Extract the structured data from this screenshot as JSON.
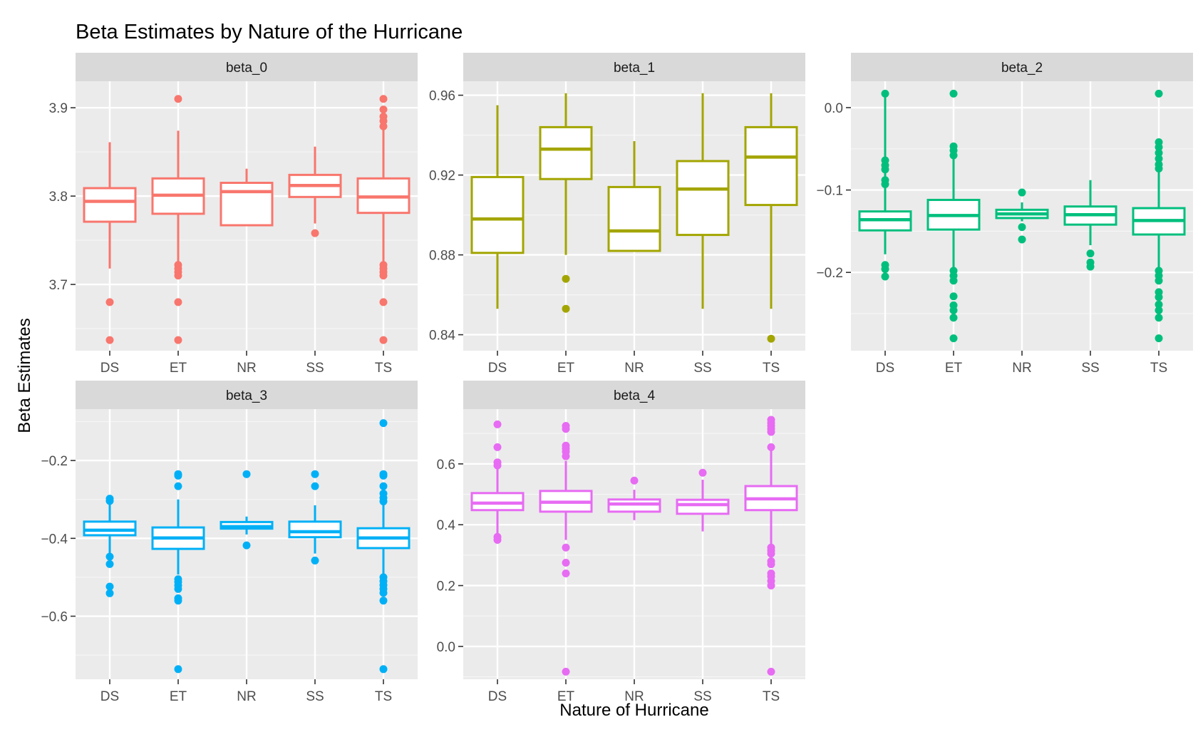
{
  "chart_data": {
    "type": "box",
    "title": "Beta Estimates by Nature of the Hurricane",
    "xlabel": "Nature of Hurricane",
    "ylabel": "Beta Estimates",
    "categories": [
      "DS",
      "ET",
      "NR",
      "SS",
      "TS"
    ],
    "grid": true,
    "legend": "none",
    "panels": [
      {
        "name": "beta_0",
        "color": "#F8766D",
        "ylim": [
          3.625,
          3.93
        ],
        "ticks": [
          3.7,
          3.8,
          3.9
        ],
        "tick_labels": [
          "3.7",
          "3.8",
          "3.9"
        ],
        "boxes": [
          {
            "category": "DS",
            "whisker_low": 3.718,
            "q1": 3.771,
            "median": 3.794,
            "q3": 3.809,
            "whisker_high": 3.861,
            "outliers": [
              3.68,
              3.637
            ]
          },
          {
            "category": "ET",
            "whisker_low": 3.725,
            "q1": 3.78,
            "median": 3.801,
            "q3": 3.82,
            "whisker_high": 3.874,
            "outliers": [
              3.91,
              3.722,
              3.718,
              3.714,
              3.71,
              3.68,
              3.637
            ]
          },
          {
            "category": "NR",
            "whisker_low": 3.767,
            "q1": 3.767,
            "median": 3.805,
            "q3": 3.815,
            "whisker_high": 3.831,
            "outliers": []
          },
          {
            "category": "SS",
            "whisker_low": 3.769,
            "q1": 3.799,
            "median": 3.812,
            "q3": 3.824,
            "whisker_high": 3.856,
            "outliers": [
              3.758
            ]
          },
          {
            "category": "TS",
            "whisker_low": 3.725,
            "q1": 3.781,
            "median": 3.799,
            "q3": 3.82,
            "whisker_high": 3.876,
            "outliers": [
              3.91,
              3.898,
              3.89,
              3.885,
              3.879,
              3.722,
              3.718,
              3.714,
              3.71,
              3.68,
              3.637
            ]
          }
        ]
      },
      {
        "name": "beta_1",
        "color": "#A3A500",
        "ylim": [
          0.832,
          0.967
        ],
        "ticks": [
          0.84,
          0.88,
          0.92,
          0.96
        ],
        "tick_labels": [
          "0.84",
          "0.88",
          "0.92",
          "0.96"
        ],
        "boxes": [
          {
            "category": "DS",
            "whisker_low": 0.853,
            "q1": 0.881,
            "median": 0.898,
            "q3": 0.919,
            "whisker_high": 0.955,
            "outliers": []
          },
          {
            "category": "ET",
            "whisker_low": 0.88,
            "q1": 0.918,
            "median": 0.933,
            "q3": 0.944,
            "whisker_high": 0.961,
            "outliers": [
              0.868,
              0.853
            ]
          },
          {
            "category": "NR",
            "whisker_low": 0.882,
            "q1": 0.882,
            "median": 0.892,
            "q3": 0.914,
            "whisker_high": 0.937,
            "outliers": []
          },
          {
            "category": "SS",
            "whisker_low": 0.853,
            "q1": 0.89,
            "median": 0.913,
            "q3": 0.927,
            "whisker_high": 0.961,
            "outliers": []
          },
          {
            "category": "TS",
            "whisker_low": 0.853,
            "q1": 0.905,
            "median": 0.929,
            "q3": 0.944,
            "whisker_high": 0.961,
            "outliers": [
              0.838
            ]
          }
        ]
      },
      {
        "name": "beta_2",
        "color": "#00BF7D",
        "ylim": [
          -0.295,
          0.032
        ],
        "ticks": [
          -0.2,
          -0.1,
          0.0
        ],
        "tick_labels": [
          "−0.2",
          "−0.1",
          "0.0"
        ],
        "boxes": [
          {
            "category": "DS",
            "whisker_low": -0.178,
            "q1": -0.149,
            "median": -0.136,
            "q3": -0.126,
            "whisker_high": 0.017,
            "outliers": [
              0.017,
              -0.064,
              -0.07,
              -0.075,
              -0.088,
              -0.093,
              -0.191,
              -0.196,
              -0.205
            ]
          },
          {
            "category": "ET",
            "whisker_low": -0.195,
            "q1": -0.148,
            "median": -0.131,
            "q3": -0.112,
            "whisker_high": -0.058,
            "outliers": [
              0.017,
              -0.047,
              -0.052,
              -0.058,
              -0.198,
              -0.204,
              -0.21,
              -0.229,
              -0.24,
              -0.246,
              -0.255,
              -0.28
            ]
          },
          {
            "category": "NR",
            "whisker_low": -0.138,
            "q1": -0.134,
            "median": -0.129,
            "q3": -0.124,
            "whisker_high": -0.115,
            "outliers": [
              -0.103,
              -0.145,
              -0.16
            ]
          },
          {
            "category": "SS",
            "whisker_low": -0.167,
            "q1": -0.142,
            "median": -0.13,
            "q3": -0.12,
            "whisker_high": -0.088,
            "outliers": [
              -0.177,
              -0.188,
              -0.193
            ]
          },
          {
            "category": "TS",
            "whisker_low": -0.197,
            "q1": -0.154,
            "median": -0.137,
            "q3": -0.122,
            "whisker_high": -0.065,
            "outliers": [
              0.017,
              -0.042,
              -0.048,
              -0.055,
              -0.062,
              -0.069,
              -0.074,
              -0.198,
              -0.204,
              -0.21,
              -0.224,
              -0.23,
              -0.239,
              -0.246,
              -0.255,
              -0.28
            ]
          }
        ]
      },
      {
        "name": "beta_3",
        "color": "#00B0F6",
        "ylim": [
          -0.762,
          -0.068
        ],
        "ticks": [
          -0.6,
          -0.4,
          -0.2
        ],
        "tick_labels": [
          "−0.6",
          "−0.4",
          "−0.2"
        ],
        "boxes": [
          {
            "category": "DS",
            "whisker_low": -0.439,
            "q1": -0.392,
            "median": -0.379,
            "q3": -0.357,
            "whisker_high": -0.31,
            "outliers": [
              -0.298,
              -0.304,
              -0.447,
              -0.466,
              -0.524,
              -0.541
            ]
          },
          {
            "category": "ET",
            "whisker_low": -0.493,
            "q1": -0.427,
            "median": -0.399,
            "q3": -0.372,
            "whisker_high": -0.3,
            "outliers": [
              -0.235,
              -0.239,
              -0.266,
              -0.505,
              -0.512,
              -0.521,
              -0.53,
              -0.554,
              -0.56,
              -0.736
            ]
          },
          {
            "category": "NR",
            "whisker_low": -0.39,
            "q1": -0.375,
            "median": -0.37,
            "q3": -0.358,
            "whisker_high": -0.344,
            "outliers": [
              -0.235,
              -0.418
            ]
          },
          {
            "category": "SS",
            "whisker_low": -0.439,
            "q1": -0.397,
            "median": -0.383,
            "q3": -0.357,
            "whisker_high": -0.315,
            "outliers": [
              -0.235,
              -0.266,
              -0.457
            ]
          },
          {
            "category": "TS",
            "whisker_low": -0.492,
            "q1": -0.425,
            "median": -0.399,
            "q3": -0.374,
            "whisker_high": -0.304,
            "outliers": [
              -0.104,
              -0.235,
              -0.239,
              -0.266,
              -0.285,
              -0.296,
              -0.305,
              -0.5,
              -0.51,
              -0.52,
              -0.53,
              -0.54,
              -0.56,
              -0.736
            ]
          }
        ]
      },
      {
        "name": "beta_4",
        "color": "#E76BF3",
        "ylim": [
          -0.108,
          0.78
        ],
        "ticks": [
          0.0,
          0.2,
          0.4,
          0.6
        ],
        "tick_labels": [
          "0.0",
          "0.2",
          "0.4",
          "0.6"
        ],
        "boxes": [
          {
            "category": "DS",
            "whisker_low": 0.37,
            "q1": 0.448,
            "median": 0.471,
            "q3": 0.504,
            "whisker_high": 0.59,
            "outliers": [
              0.73,
              0.655,
              0.605,
              0.595,
              0.36,
              0.35
            ]
          },
          {
            "category": "ET",
            "whisker_low": 0.35,
            "q1": 0.443,
            "median": 0.474,
            "q3": 0.511,
            "whisker_high": 0.61,
            "outliers": [
              0.725,
              0.715,
              0.66,
              0.65,
              0.64,
              0.625,
              0.325,
              0.275,
              0.24,
              -0.083
            ]
          },
          {
            "category": "NR",
            "whisker_low": 0.415,
            "q1": 0.443,
            "median": 0.468,
            "q3": 0.483,
            "whisker_high": 0.515,
            "outliers": [
              0.545
            ]
          },
          {
            "category": "SS",
            "whisker_low": 0.378,
            "q1": 0.436,
            "median": 0.466,
            "q3": 0.482,
            "whisker_high": 0.548,
            "outliers": [
              0.571
            ]
          },
          {
            "category": "TS",
            "whisker_low": 0.335,
            "q1": 0.448,
            "median": 0.485,
            "q3": 0.527,
            "whisker_high": 0.65,
            "outliers": [
              0.745,
              0.735,
              0.725,
              0.715,
              0.705,
              0.655,
              0.325,
              0.315,
              0.305,
              0.28,
              0.27,
              0.24,
              0.23,
              0.215,
              0.2,
              -0.083
            ]
          }
        ]
      }
    ]
  }
}
